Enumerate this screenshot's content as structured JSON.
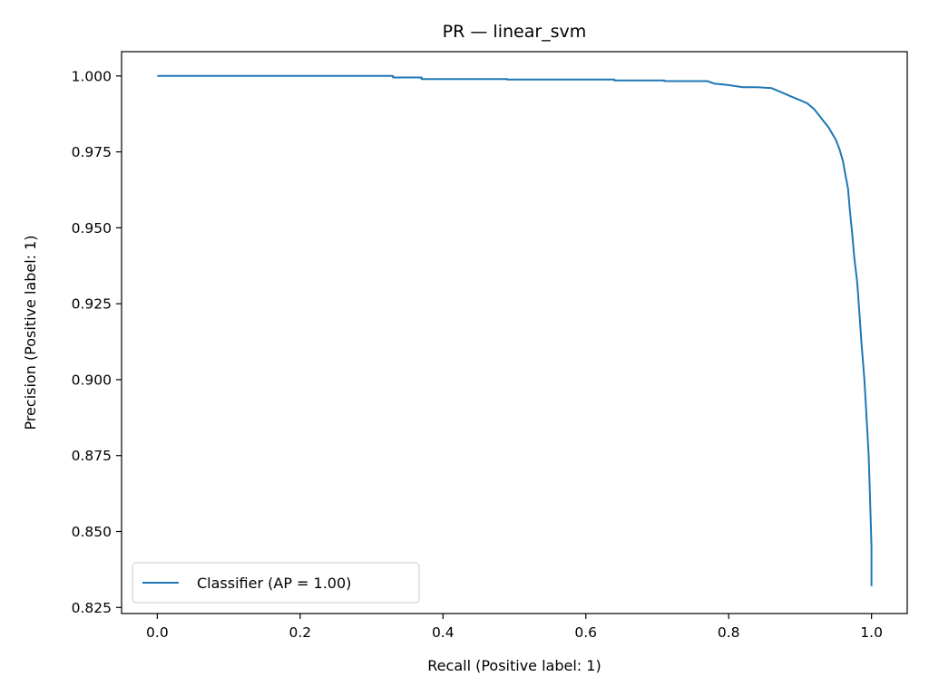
{
  "chart_data": {
    "type": "line",
    "title": "PR — linear_svm",
    "xlabel": "Recall (Positive label: 1)",
    "ylabel": "Precision (Positive label: 1)",
    "xlim": [
      -0.05,
      1.05
    ],
    "ylim": [
      0.823,
      1.008
    ],
    "xticks": [
      0.0,
      0.2,
      0.4,
      0.6,
      0.8,
      1.0
    ],
    "xtick_labels": [
      "0.0",
      "0.2",
      "0.4",
      "0.6",
      "0.8",
      "1.0"
    ],
    "yticks": [
      0.825,
      0.85,
      0.875,
      0.9,
      0.925,
      0.95,
      0.975,
      1.0
    ],
    "ytick_labels": [
      "0.825",
      "0.850",
      "0.875",
      "0.900",
      "0.925",
      "0.950",
      "0.975",
      "1.000"
    ],
    "grid": false,
    "legend_position": "lower-left",
    "series": [
      {
        "name": "Classifier (AP = 1.00)",
        "color": "#1f77b4",
        "x": [
          0.0,
          0.33,
          0.33,
          0.37,
          0.37,
          0.49,
          0.49,
          0.64,
          0.64,
          0.71,
          0.71,
          0.77,
          0.78,
          0.8,
          0.82,
          0.84,
          0.86,
          0.87,
          0.88,
          0.89,
          0.9,
          0.91,
          0.92,
          0.93,
          0.94,
          0.95,
          0.955,
          0.96,
          0.963,
          0.967,
          0.97,
          0.973,
          0.976,
          0.98,
          0.983,
          0.986,
          0.99,
          0.993,
          0.996,
          0.998,
          1.0,
          1.0
        ],
        "y": [
          1.0,
          1.0,
          0.9995,
          0.9995,
          0.999,
          0.999,
          0.9988,
          0.9988,
          0.9985,
          0.9985,
          0.9983,
          0.9983,
          0.9975,
          0.997,
          0.9963,
          0.9963,
          0.996,
          0.995,
          0.994,
          0.993,
          0.992,
          0.991,
          0.989,
          0.986,
          0.983,
          0.979,
          0.976,
          0.972,
          0.968,
          0.963,
          0.955,
          0.948,
          0.94,
          0.932,
          0.922,
          0.912,
          0.9,
          0.888,
          0.875,
          0.86,
          0.845,
          0.832
        ]
      }
    ]
  }
}
